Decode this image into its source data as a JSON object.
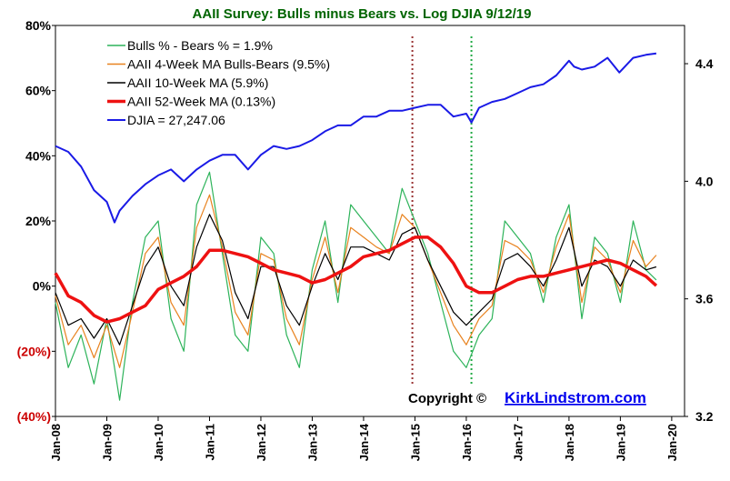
{
  "chart_data": {
    "type": "line",
    "title": "AAII Survey: Bulls minus Bears vs. Log DJIA  9/12/19",
    "copyright_prefix": "Copyright ©",
    "copyright_link": "KirkLindstrom.com",
    "x_ticks": [
      "Jan-08",
      "Jan-09",
      "Jan-10",
      "Jan-11",
      "Jan-12",
      "Jan-13",
      "Jan-14",
      "Jan-15",
      "Jan-16",
      "Jan-17",
      "Jan-18",
      "Jan-19",
      "Jan-20"
    ],
    "y_left": {
      "ticks": [
        "80%",
        "60%",
        "40%",
        "20%",
        "0%",
        "(20%)",
        "(40%)"
      ],
      "values": [
        80,
        60,
        40,
        20,
        0,
        -20,
        -40
      ],
      "range": [
        -40,
        80
      ],
      "unit": "%"
    },
    "y_right": {
      "ticks": [
        "4.4",
        "4.0",
        "3.6",
        "3.2"
      ],
      "values": [
        4.4,
        4.0,
        3.6,
        3.2
      ],
      "range": [
        3.2,
        4.53
      ],
      "scale": "log10 of DJIA"
    },
    "xlim": [
      2008.0,
      2020.25
    ],
    "grid": false,
    "legend_position": "top-left",
    "colors": {
      "bulls_minus_bears": "#2db35a",
      "ma4": "#e8821e",
      "ma10": "#000000",
      "ma52": "#ee1111",
      "djia": "#1a1ae6",
      "marker_red": "#993333",
      "marker_green": "#22aa44",
      "title": "#006400",
      "copyright_link": "#0000ee",
      "negative_ticks": "#cc0000"
    },
    "series": [
      {
        "name": "Bulls % - Bears % = 1.9%",
        "axis": "left",
        "x": [
          2008.0,
          2008.25,
          2008.5,
          2008.75,
          2009.0,
          2009.25,
          2009.5,
          2009.75,
          2010.0,
          2010.25,
          2010.5,
          2010.75,
          2011.0,
          2011.25,
          2011.5,
          2011.75,
          2012.0,
          2012.25,
          2012.5,
          2012.75,
          2013.0,
          2013.25,
          2013.5,
          2013.75,
          2014.0,
          2014.25,
          2014.5,
          2014.75,
          2015.0,
          2015.25,
          2015.5,
          2015.75,
          2016.0,
          2016.25,
          2016.5,
          2016.75,
          2017.0,
          2017.25,
          2017.5,
          2017.75,
          2018.0,
          2018.25,
          2018.5,
          2018.75,
          2019.0,
          2019.25,
          2019.5,
          2019.7
        ],
        "values": [
          -5,
          -25,
          -15,
          -30,
          -10,
          -35,
          -5,
          15,
          20,
          -10,
          -20,
          25,
          35,
          10,
          -15,
          -20,
          15,
          10,
          -15,
          -25,
          5,
          20,
          -5,
          25,
          20,
          15,
          10,
          30,
          20,
          10,
          -5,
          -20,
          -25,
          -15,
          -10,
          20,
          15,
          10,
          -5,
          15,
          25,
          -10,
          15,
          10,
          -5,
          20,
          5,
          1.9
        ]
      },
      {
        "name": "AAII 4-Week MA Bulls-Bears (9.5%)",
        "axis": "left",
        "x": [
          2008.0,
          2008.25,
          2008.5,
          2008.75,
          2009.0,
          2009.25,
          2009.5,
          2009.75,
          2010.0,
          2010.25,
          2010.5,
          2010.75,
          2011.0,
          2011.25,
          2011.5,
          2011.75,
          2012.0,
          2012.25,
          2012.5,
          2012.75,
          2013.0,
          2013.25,
          2013.5,
          2013.75,
          2014.0,
          2014.25,
          2014.5,
          2014.75,
          2015.0,
          2015.25,
          2015.5,
          2015.75,
          2016.0,
          2016.25,
          2016.5,
          2016.75,
          2017.0,
          2017.25,
          2017.5,
          2017.75,
          2018.0,
          2018.25,
          2018.5,
          2018.75,
          2019.0,
          2019.25,
          2019.5,
          2019.7
        ],
        "values": [
          -3,
          -18,
          -12,
          -22,
          -12,
          -25,
          -8,
          10,
          15,
          -5,
          -12,
          18,
          28,
          12,
          -8,
          -15,
          10,
          8,
          -10,
          -18,
          2,
          15,
          -2,
          18,
          15,
          12,
          10,
          22,
          18,
          8,
          -2,
          -12,
          -18,
          -10,
          -6,
          14,
          12,
          8,
          -2,
          12,
          22,
          -5,
          12,
          8,
          -2,
          14,
          6,
          9.5
        ]
      },
      {
        "name": "AAII 10-Week MA (5.9%)",
        "axis": "left",
        "x": [
          2008.0,
          2008.25,
          2008.5,
          2008.75,
          2009.0,
          2009.25,
          2009.5,
          2009.75,
          2010.0,
          2010.25,
          2010.5,
          2010.75,
          2011.0,
          2011.25,
          2011.5,
          2011.75,
          2012.0,
          2012.25,
          2012.5,
          2012.75,
          2013.0,
          2013.25,
          2013.5,
          2013.75,
          2014.0,
          2014.25,
          2014.5,
          2014.75,
          2015.0,
          2015.25,
          2015.5,
          2015.75,
          2016.0,
          2016.25,
          2016.5,
          2016.75,
          2017.0,
          2017.25,
          2017.5,
          2017.75,
          2018.0,
          2018.25,
          2018.5,
          2018.75,
          2019.0,
          2019.25,
          2019.5,
          2019.7
        ],
        "values": [
          -2,
          -12,
          -10,
          -16,
          -10,
          -18,
          -6,
          6,
          12,
          0,
          -6,
          12,
          22,
          14,
          -2,
          -10,
          6,
          6,
          -6,
          -12,
          0,
          10,
          2,
          12,
          12,
          10,
          8,
          16,
          18,
          8,
          0,
          -8,
          -12,
          -8,
          -4,
          8,
          10,
          6,
          0,
          8,
          18,
          0,
          8,
          6,
          0,
          8,
          5,
          5.9
        ]
      },
      {
        "name": "AAII 52-Week MA (0.13%)",
        "axis": "left",
        "x": [
          2008.0,
          2008.25,
          2008.5,
          2008.75,
          2009.0,
          2009.25,
          2009.5,
          2009.75,
          2010.0,
          2010.25,
          2010.5,
          2010.75,
          2011.0,
          2011.25,
          2011.5,
          2011.75,
          2012.0,
          2012.25,
          2012.5,
          2012.75,
          2013.0,
          2013.25,
          2013.5,
          2013.75,
          2014.0,
          2014.25,
          2014.5,
          2014.75,
          2015.0,
          2015.25,
          2015.5,
          2015.75,
          2016.0,
          2016.25,
          2016.5,
          2016.75,
          2017.0,
          2017.25,
          2017.5,
          2017.75,
          2018.0,
          2018.25,
          2018.5,
          2018.75,
          2019.0,
          2019.25,
          2019.5,
          2019.7
        ],
        "values": [
          4,
          -3,
          -5,
          -9,
          -11,
          -10,
          -8,
          -6,
          -1,
          1,
          3,
          6,
          11,
          11,
          10,
          9,
          7,
          5,
          4,
          3,
          1,
          2,
          4,
          6,
          9,
          10,
          11,
          13,
          15,
          15,
          12,
          7,
          0,
          -2,
          -2,
          0,
          2,
          3,
          3,
          4,
          5,
          6,
          7,
          8,
          7,
          5,
          3,
          0.13
        ]
      },
      {
        "name": "DJIA =  27,247.06",
        "axis": "right",
        "x": [
          2008.0,
          2008.25,
          2008.5,
          2008.75,
          2009.0,
          2009.15,
          2009.25,
          2009.5,
          2009.75,
          2010.0,
          2010.25,
          2010.5,
          2010.75,
          2011.0,
          2011.25,
          2011.5,
          2011.75,
          2012.0,
          2012.25,
          2012.5,
          2012.75,
          2013.0,
          2013.25,
          2013.5,
          2013.75,
          2014.0,
          2014.25,
          2014.5,
          2014.75,
          2015.0,
          2015.25,
          2015.5,
          2015.75,
          2016.0,
          2016.1,
          2016.25,
          2016.5,
          2016.75,
          2017.0,
          2017.25,
          2017.5,
          2017.75,
          2018.0,
          2018.1,
          2018.25,
          2018.5,
          2018.75,
          2018.98,
          2019.25,
          2019.5,
          2019.7
        ],
        "values": [
          4.12,
          4.1,
          4.05,
          3.97,
          3.93,
          3.86,
          3.9,
          3.95,
          3.99,
          4.02,
          4.04,
          4.0,
          4.04,
          4.07,
          4.09,
          4.09,
          4.04,
          4.09,
          4.12,
          4.11,
          4.12,
          4.14,
          4.17,
          4.19,
          4.19,
          4.22,
          4.22,
          4.24,
          4.24,
          4.25,
          4.26,
          4.26,
          4.22,
          4.23,
          4.2,
          4.25,
          4.27,
          4.28,
          4.3,
          4.32,
          4.33,
          4.36,
          4.41,
          4.39,
          4.38,
          4.39,
          4.42,
          4.37,
          4.42,
          4.43,
          4.435
        ]
      }
    ],
    "vertical_markers": [
      {
        "x": 2014.95,
        "color": "marker_red",
        "style": "dotted"
      },
      {
        "x": 2016.1,
        "color": "marker_green",
        "style": "dotted"
      }
    ]
  }
}
